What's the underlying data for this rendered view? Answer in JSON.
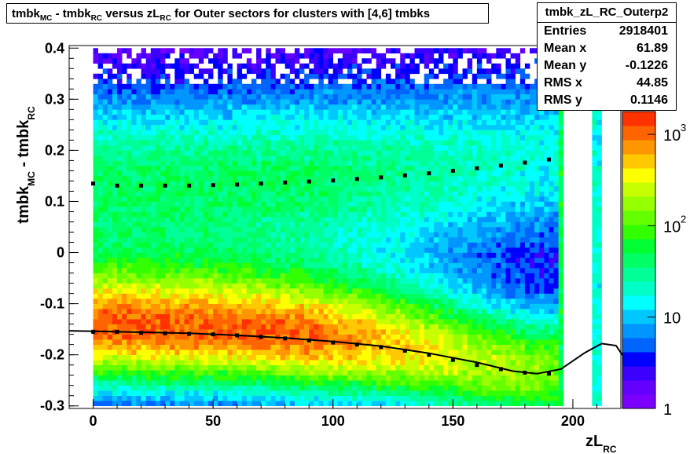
{
  "chart_data": {
    "type": "heatmap",
    "title": {
      "parts": [
        {
          "t": "tmbk"
        },
        {
          "t": "MC",
          "sub": true
        },
        {
          "t": " - tmbk"
        },
        {
          "t": "RC",
          "sub": true
        },
        {
          "t": " versus zL"
        },
        {
          "t": "RC",
          "sub": true
        },
        {
          "t": " for Outer sectors for clusters with [4,6] tmbks"
        }
      ]
    },
    "xlabel": {
      "main": "zL",
      "sub": "RC"
    },
    "ylabel": {
      "parts": [
        {
          "t": "tmbk"
        },
        {
          "t": "MC",
          "sub": true
        },
        {
          "t": " - tmbk"
        },
        {
          "t": "RC",
          "sub": true
        }
      ]
    },
    "xlim": [
      -10,
      220
    ],
    "ylim": [
      -0.305,
      0.405
    ],
    "x_ticks": [
      "0",
      "50",
      "100",
      "150",
      "200"
    ],
    "y_ticks": [
      "-0.3",
      "-0.2",
      "-0.1",
      "0",
      "0.1",
      "0.2",
      "0.3",
      "0.4"
    ],
    "z_scale": "log",
    "z_ticks": [
      "1",
      "10",
      "10",
      "10"
    ],
    "z_tick_exponents": [
      "",
      "",
      "2",
      "3"
    ],
    "palette": [
      "#7b00ff",
      "#6400ff",
      "#3b00ff",
      "#0000ff",
      "#0064ff",
      "#0096ff",
      "#00c8ff",
      "#00ffff",
      "#00ffc8",
      "#00ff96",
      "#00ff64",
      "#00ff32",
      "#32ff00",
      "#64ff00",
      "#96ff00",
      "#c8ff00",
      "#ffff00",
      "#ffc800",
      "#ff9600",
      "#ff6400",
      "#ff3200"
    ],
    "stats": {
      "name": "tmbk_zL_RC_Outerp2",
      "rows": [
        {
          "label": "Entries",
          "value": "2918401"
        },
        {
          "label": "Mean x",
          "value": "61.89"
        },
        {
          "label": "Mean y",
          "value": "-0.1226"
        },
        {
          "label": "RMS x",
          "value": "44.85"
        },
        {
          "label": "RMS y",
          "value": "0.1146"
        }
      ]
    },
    "series": [
      {
        "kind": "profile_upper",
        "x": [
          0,
          10,
          20,
          30,
          40,
          50,
          60,
          70,
          80,
          90,
          100,
          110,
          120,
          130,
          140,
          150,
          160,
          170,
          180,
          190
        ],
        "y": [
          0.135,
          0.131,
          0.131,
          0.131,
          0.131,
          0.132,
          0.133,
          0.135,
          0.137,
          0.139,
          0.141,
          0.144,
          0.147,
          0.151,
          0.155,
          0.16,
          0.165,
          0.17,
          0.176,
          0.182
        ]
      },
      {
        "kind": "profile_lower",
        "x": [
          0,
          10,
          20,
          30,
          40,
          50,
          60,
          70,
          80,
          90,
          100,
          110,
          120,
          130,
          140,
          150,
          160,
          170,
          180,
          190
        ],
        "y": [
          -0.155,
          -0.155,
          -0.157,
          -0.158,
          -0.159,
          -0.16,
          -0.162,
          -0.165,
          -0.168,
          -0.172,
          -0.176,
          -0.18,
          -0.185,
          -0.192,
          -0.2,
          -0.21,
          -0.22,
          -0.228,
          -0.235,
          -0.237
        ]
      },
      {
        "kind": "fit_curve",
        "x": [
          -10,
          0,
          20,
          40,
          60,
          80,
          100,
          120,
          140,
          160,
          175,
          185,
          195,
          205,
          212,
          218,
          222
        ],
        "y": [
          -0.153,
          -0.154,
          -0.156,
          -0.158,
          -0.162,
          -0.167,
          -0.174,
          -0.183,
          -0.197,
          -0.215,
          -0.232,
          -0.237,
          -0.228,
          -0.196,
          -0.178,
          -0.182,
          -0.21
        ]
      }
    ]
  }
}
